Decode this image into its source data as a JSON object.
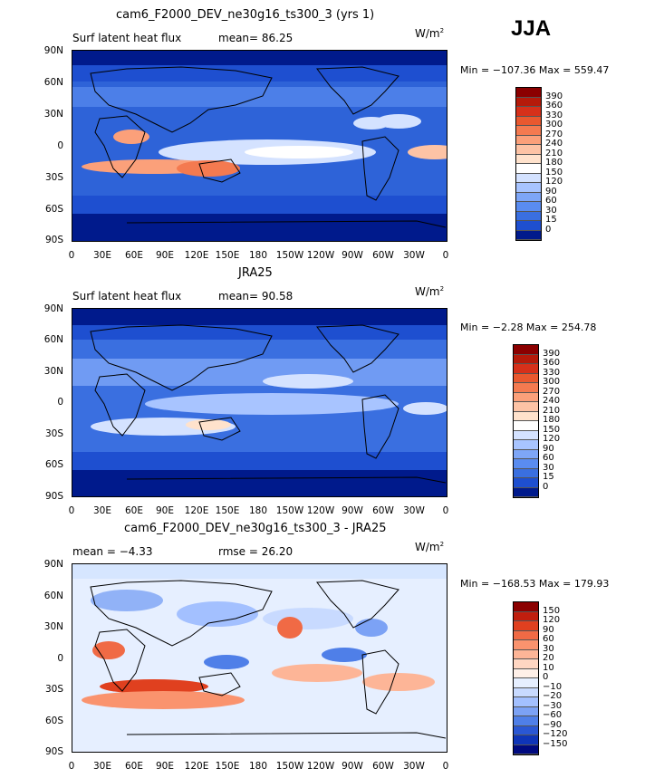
{
  "season": "JJA",
  "colors": {
    "ocean_cool": "#2e63d8",
    "ocean_mid": "#5a8cf0",
    "ocean_light": "#b8d0ff",
    "warm_light": "#ffe2cc",
    "warm_mid": "#fba07a",
    "warm_strong": "#e9582f",
    "dark_blue": "#0a1f9c",
    "diff_neutral": "#d6e6ff"
  },
  "panels": [
    {
      "id": "model",
      "title": "cam6_F2000_DEV_ne30g16_ts300_3 (yrs 1)",
      "left_label": "Surf latent heat flux",
      "center_label": "mean=  86.25",
      "unit": "W/m",
      "unit_sup": "2",
      "minmax": "Min = −107.36 Max = 559.47",
      "colorbar_labels": [
        "390",
        "360",
        "330",
        "300",
        "270",
        "240",
        "210",
        "180",
        "150",
        "120",
        "90",
        "60",
        "30",
        "15",
        "0"
      ],
      "colorbar_colors": [
        "#8b0000",
        "#b51a0a",
        "#d6301a",
        "#e9582f",
        "#f47a50",
        "#fba07a",
        "#fdc3a5",
        "#ffe2cc",
        "#ffffff",
        "#d4e2ff",
        "#a8c4ff",
        "#7ea6f7",
        "#5a8cf0",
        "#3a6fe0",
        "#1e4fd0",
        "#001a8c"
      ]
    },
    {
      "id": "obs",
      "title": "JRA25",
      "left_label": "Surf latent heat flux",
      "center_label": "mean=  90.58",
      "unit": "W/m",
      "unit_sup": "2",
      "minmax": "Min =  −2.28 Max = 254.78",
      "colorbar_labels": [
        "390",
        "360",
        "330",
        "300",
        "270",
        "240",
        "210",
        "180",
        "150",
        "120",
        "90",
        "60",
        "30",
        "15",
        "0"
      ],
      "colorbar_colors": [
        "#8b0000",
        "#b51a0a",
        "#d6301a",
        "#e9582f",
        "#f47a50",
        "#fba07a",
        "#fdc3a5",
        "#ffe2cc",
        "#ffffff",
        "#d4e2ff",
        "#a8c4ff",
        "#7ea6f7",
        "#5a8cf0",
        "#3a6fe0",
        "#1e4fd0",
        "#001a8c"
      ]
    },
    {
      "id": "diff",
      "title": "cam6_F2000_DEV_ne30g16_ts300_3 - JRA25",
      "left_label": "mean =  −4.33",
      "center_label": "rmse =  26.20",
      "unit": "W/m",
      "unit_sup": "2",
      "minmax": "Min = −168.53 Max = 179.93",
      "colorbar_labels": [
        "150",
        "120",
        "90",
        "60",
        "30",
        "20",
        "10",
        "0",
        "−10",
        "−20",
        "−30",
        "−60",
        "−90",
        "−120",
        "−150"
      ],
      "colorbar_colors": [
        "#8b0000",
        "#c01e0e",
        "#e0401f",
        "#f06a45",
        "#fa936e",
        "#fdb597",
        "#ffd6c2",
        "#fff0e8",
        "#e6efff",
        "#c8daff",
        "#a3c0ff",
        "#7ca2f5",
        "#4f7fe8",
        "#2a57d4",
        "#0f35b8",
        "#000a80"
      ]
    }
  ],
  "axis": {
    "lat_labels": [
      "90N",
      "60N",
      "30N",
      "0",
      "30S",
      "60S",
      "90S"
    ],
    "lon_labels": [
      "0",
      "30E",
      "60E",
      "90E",
      "120E",
      "150E",
      "180",
      "150W",
      "120W",
      "90W",
      "60W",
      "30W",
      "0"
    ]
  }
}
